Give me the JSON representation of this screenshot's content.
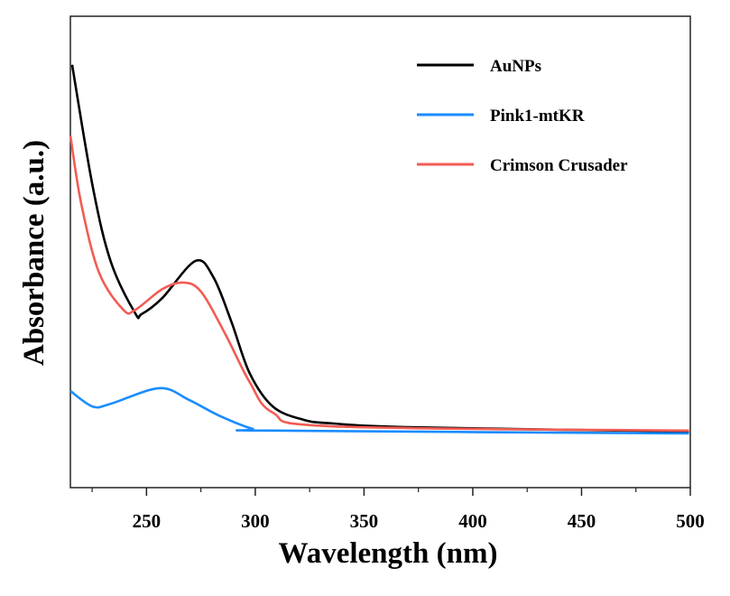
{
  "chart_data": {
    "type": "line",
    "title": "",
    "xlabel": "Wavelength (nm)",
    "ylabel": "Absorbance (a.u.)",
    "xlim": [
      215,
      500
    ],
    "ylim": [
      0,
      1
    ],
    "y_ticks_shown": false,
    "x_ticks": [
      250,
      300,
      350,
      400,
      450,
      500
    ],
    "x_tick_labels": [
      "250",
      "300",
      "350",
      "400",
      "450",
      "500"
    ],
    "x_minor_ticks": [
      225,
      275,
      325,
      375,
      425,
      475
    ],
    "grid": false,
    "legend_position": "top-right",
    "series": [
      {
        "name": "AuNPs",
        "color": "#000000",
        "x": [
          215.8,
          225.3,
          233.6,
          244.8,
          247.7,
          257.2,
          272.5,
          280.8,
          289.1,
          297.4,
          308.1,
          322.2,
          335.9,
          373.1,
          499.4
        ],
        "y": [
          0.897,
          0.638,
          0.479,
          0.37,
          0.368,
          0.402,
          0.481,
          0.446,
          0.351,
          0.243,
          0.172,
          0.144,
          0.136,
          0.128,
          0.119
        ]
      },
      {
        "name": "Pink1-mtKR",
        "color": "#1a8cff",
        "x": [
          215,
          225.3,
          233.6,
          256,
          269.6,
          283.3,
          298.6,
          308.1,
          499.4
        ],
        "y": [
          0.205,
          0.172,
          0.178,
          0.211,
          0.186,
          0.153,
          0.125,
          0.121,
          0.115
        ]
      },
      {
        "name": "Crimson Crusader",
        "color": "#f25c54",
        "x": [
          215,
          220,
          228.2,
          239.4,
          244.8,
          257.2,
          266.7,
          275,
          286.2,
          297.4,
          308.1,
          335.9,
          499.4
        ],
        "y": [
          0.747,
          0.602,
          0.456,
          0.377,
          0.377,
          0.421,
          0.435,
          0.416,
          0.326,
          0.224,
          0.159,
          0.13,
          0.121
        ]
      }
    ]
  }
}
